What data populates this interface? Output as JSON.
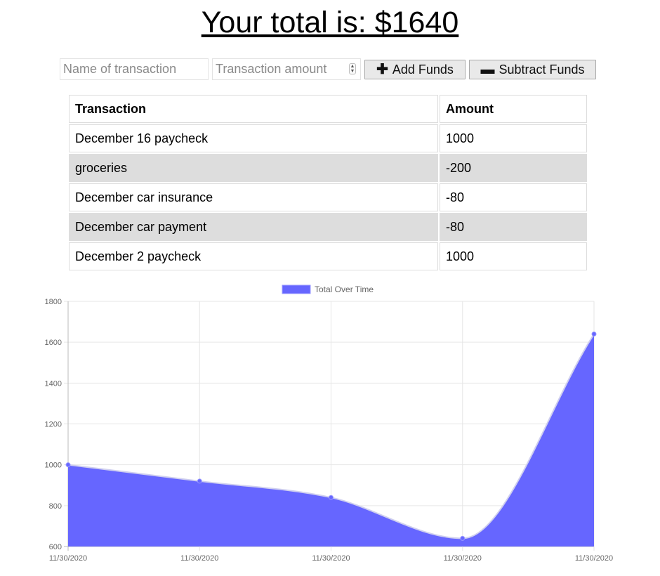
{
  "header": {
    "total_text": "Your total is: $1640"
  },
  "form": {
    "name_placeholder": "Name of transaction",
    "amount_placeholder": "Transaction amount",
    "add_label": "Add Funds",
    "subtract_label": "Subtract Funds"
  },
  "table": {
    "headers": [
      "Transaction",
      "Amount"
    ],
    "rows": [
      {
        "name": "December 16 paycheck",
        "amount": "1000"
      },
      {
        "name": "groceries",
        "amount": "-200"
      },
      {
        "name": "December car insurance",
        "amount": "-80"
      },
      {
        "name": "December car payment",
        "amount": "-80"
      },
      {
        "name": "December 2 paycheck",
        "amount": "1000"
      }
    ]
  },
  "chart_data": {
    "type": "area",
    "title": "",
    "x": [
      "11/30/2020",
      "11/30/2020",
      "11/30/2020",
      "11/30/2020",
      "11/30/2020"
    ],
    "series": [
      {
        "name": "Total Over Time",
        "values": [
          1000,
          920,
          840,
          640,
          1640
        ],
        "color": "#6666ff"
      }
    ],
    "ylim": [
      600,
      1800
    ],
    "yticks": [
      600,
      800,
      1000,
      1200,
      1400,
      1600,
      1800
    ],
    "grid": true,
    "legend": "top-center",
    "curved": true
  }
}
